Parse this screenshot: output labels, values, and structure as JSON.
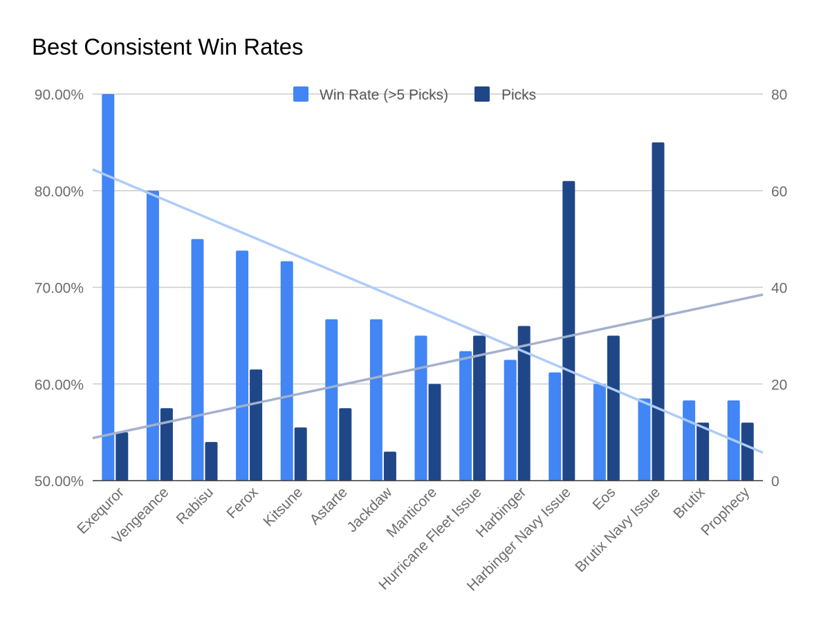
{
  "chart_data": {
    "type": "bar",
    "title": "Best Consistent Win Rates",
    "categories": [
      "Exequror",
      "Vengeance",
      "Rabisu",
      "Ferox",
      "Kitsune",
      "Astarte",
      "Jackdaw",
      "Manticore",
      "Hurricane Fleet Issue",
      "Harbinger",
      "Harbinger Navy Issue",
      "Eos",
      "Brutix Navy Issue",
      "Brutix",
      "Prophecy"
    ],
    "series": [
      {
        "name": "Win Rate (>5 Picks)",
        "axis": "left",
        "color": "#4285f4",
        "values": [
          90.0,
          80.0,
          75.0,
          73.8,
          72.7,
          66.7,
          66.7,
          65.0,
          63.4,
          62.5,
          61.2,
          60.0,
          58.5,
          58.3,
          58.3
        ]
      },
      {
        "name": "Picks",
        "axis": "right",
        "color": "#1f4788",
        "values": [
          10,
          15,
          8,
          23,
          11,
          15,
          6,
          20,
          30,
          32,
          62,
          30,
          70,
          12,
          12
        ]
      }
    ],
    "trendlines": [
      {
        "series": "Win Rate (>5 Picks)",
        "color": "#aecbfa",
        "start": 82.2,
        "end": 52.9
      },
      {
        "series": "Picks",
        "color": "#a3b1cc",
        "start": 8.8,
        "end": 38.5
      }
    ],
    "y_left": {
      "ylim": [
        50,
        90
      ],
      "ticks": [
        "50.00%",
        "60.00%",
        "70.00%",
        "80.00%",
        "90.00%"
      ],
      "tick_values": [
        50,
        60,
        70,
        80,
        90
      ]
    },
    "y_right": {
      "ylim": [
        0,
        80
      ],
      "ticks": [
        "0",
        "20",
        "40",
        "60",
        "80"
      ],
      "tick_values": [
        0,
        20,
        40,
        60,
        80
      ]
    },
    "grid": true,
    "legend_position": "top"
  }
}
